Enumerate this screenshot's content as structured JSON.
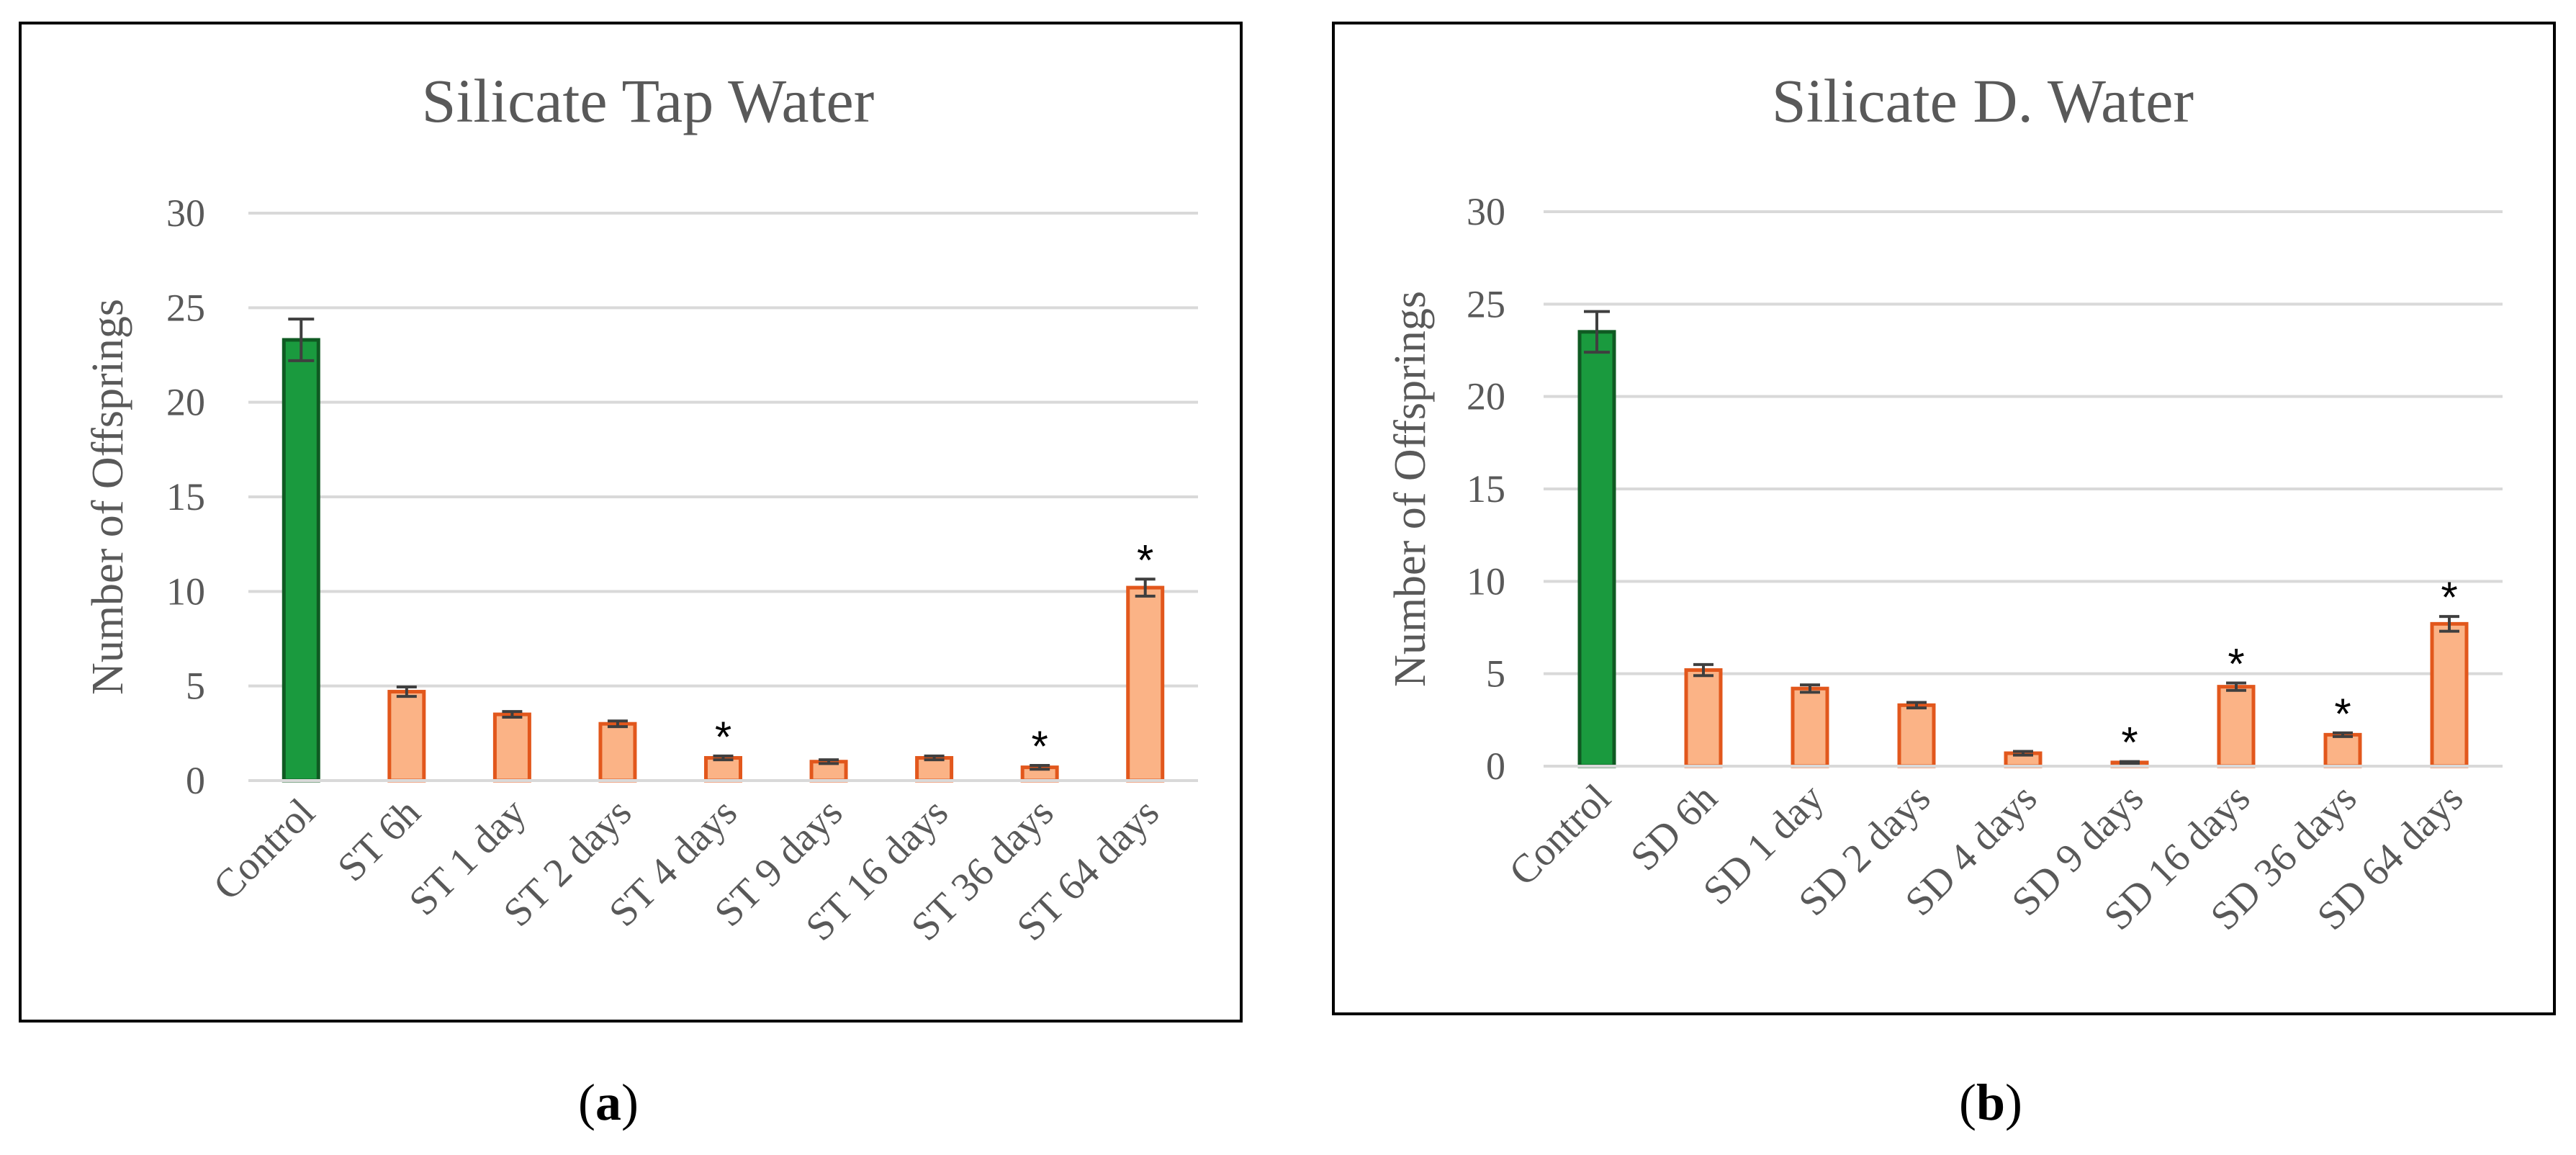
{
  "colors": {
    "control_fill": "#1a9a3e",
    "control_edge": "#0f5a22",
    "bar_fill": "#fbb386",
    "bar_edge": "#e2571c",
    "grid": "#d9d9d9",
    "text": "#595959",
    "error": "#3f3f3f"
  },
  "chart_data": [
    {
      "type": "bar",
      "title": "Silicate Tap Water",
      "xlabel": "",
      "ylabel": "Number of Offsprings",
      "ylim": [
        0,
        30
      ],
      "yticks": [
        "0",
        "5",
        "10",
        "15",
        "20",
        "25",
        "30"
      ],
      "grid": true,
      "categories": [
        "Control",
        "ST 6h",
        "ST 1 day",
        "ST 2 days",
        "ST 4 days",
        "ST 9 days",
        "ST 16 days",
        "ST 36 days",
        "ST 64 days"
      ],
      "values": [
        23.3,
        4.7,
        3.5,
        3.0,
        1.2,
        1.0,
        1.2,
        0.7,
        10.2
      ],
      "errors": [
        1.1,
        0.25,
        0.15,
        0.15,
        0.1,
        0.1,
        0.1,
        0.1,
        0.45
      ],
      "significant": [
        false,
        false,
        false,
        false,
        true,
        false,
        false,
        true,
        true
      ],
      "marker": "*"
    },
    {
      "type": "bar",
      "title": "Silicate D. Water",
      "xlabel": "",
      "ylabel": "Number of Offsprings",
      "ylim": [
        0,
        30
      ],
      "yticks": [
        "0",
        "5",
        "10",
        "15",
        "20",
        "25",
        "30"
      ],
      "grid": true,
      "categories": [
        "Control",
        "SD 6h",
        "SD 1 day",
        "SD 2 days",
        "SD 4 days",
        "SD 9 days",
        "SD 16 days",
        "SD 36 days",
        "SD 64 days"
      ],
      "values": [
        23.5,
        5.2,
        4.2,
        3.3,
        0.7,
        0.2,
        4.3,
        1.7,
        7.7
      ],
      "errors": [
        1.1,
        0.3,
        0.2,
        0.15,
        0.1,
        0.05,
        0.2,
        0.1,
        0.4
      ],
      "significant": [
        false,
        false,
        false,
        false,
        false,
        true,
        true,
        true,
        true
      ],
      "marker": "*"
    }
  ],
  "captions": [
    {
      "open": "(",
      "letter": "a",
      "close": ")"
    },
    {
      "open": "(",
      "letter": "b",
      "close": ")"
    }
  ]
}
